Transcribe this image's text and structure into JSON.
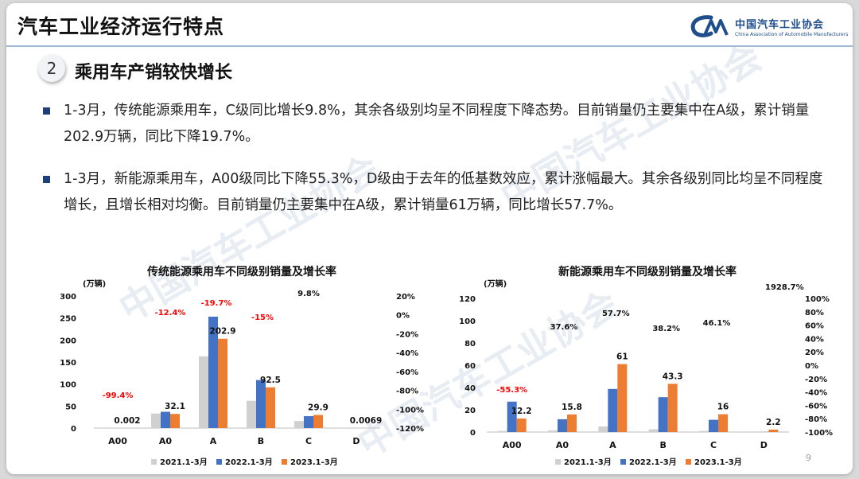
{
  "header": {
    "title": "汽车工业经济运行特点"
  },
  "logo": {
    "name_cn": "中国汽车工业协会",
    "name_en": "China Association of Automobile Manufacturers"
  },
  "watermark": "中国汽车工业协会",
  "section": {
    "number": "2",
    "title": "乘用车产销较快增长"
  },
  "bullets": [
    "1-3月，传统能源乘用车，C级同比增长9.8%，其余各级别均呈不同程度下降态势。目前销量仍主要集中在A级，累计销量202.9万辆，同比下降19.7%。",
    "1-3月，新能源乘用车，A00级同比下降55.3%，D级由于去年的低基数效应，累计涨幅最大。其余各级别同比均呈不同程度增长，且增长相对均衡。目前销量仍主要集中在A级，累计销量61万辆，同比增长57.7%。"
  ],
  "page_number": "9",
  "colors": {
    "s2021": "#d0d0d0",
    "s2022": "#4472c4",
    "s2023": "#ed7d31",
    "negative": "#ff0000",
    "bullet": "#1f3f7a"
  },
  "chart_data": [
    {
      "type": "bar",
      "title": "传统能源乘用车不同级别销量及增长率",
      "unit_label": "(万辆)",
      "categories": [
        "A00",
        "A0",
        "A",
        "B",
        "C",
        "D"
      ],
      "series": [
        {
          "name": "2021.1-3月",
          "values": [
            0.01,
            33,
            163,
            62,
            16,
            0.01
          ]
        },
        {
          "name": "2022.1-3月",
          "values": [
            0.01,
            37,
            253,
            109,
            27,
            0.01
          ]
        },
        {
          "name": "2023.1-3月",
          "values": [
            0.002,
            32.1,
            202.9,
            92.5,
            29.9,
            0.0069
          ]
        }
      ],
      "value_labels": [
        "0.002",
        "32.1",
        "202.9",
        "92.5",
        "29.9",
        "0.0069"
      ],
      "growth_labels": [
        "-99.4%",
        "-12.4%",
        "-19.7%",
        "-15%",
        "9.8%",
        ""
      ],
      "growth_values": [
        -99.4,
        -12.4,
        -19.7,
        -15,
        9.8,
        null
      ],
      "ylim": [
        0,
        300
      ],
      "yticks": [
        "300",
        "250",
        "200",
        "150",
        "100",
        "50",
        "0"
      ],
      "y2lim": [
        -120,
        20
      ],
      "y2ticks": [
        "20%",
        "0%",
        "-20%",
        "-40%",
        "-60%",
        "-80%",
        "-100%",
        "-120%"
      ],
      "legend": "bottom"
    },
    {
      "type": "bar",
      "title": "新能源乘用车不同级别销量及增长率",
      "unit_label": "(万辆)",
      "categories": [
        "A00",
        "A0",
        "A",
        "B",
        "C",
        "D"
      ],
      "series": [
        {
          "name": "2021.1-3月",
          "values": [
            1,
            1.5,
            5,
            2.5,
            1,
            0.01
          ]
        },
        {
          "name": "2022.1-3月",
          "values": [
            27.3,
            11.5,
            38.7,
            31.3,
            11,
            0.1
          ]
        },
        {
          "name": "2023.1-3月",
          "values": [
            12.2,
            15.8,
            61,
            43.3,
            16,
            2.2
          ]
        }
      ],
      "value_labels": [
        "12.2",
        "15.8",
        "61",
        "43.3",
        "16",
        "2.2"
      ],
      "growth_labels": [
        "-55.3%",
        "37.6%",
        "57.7%",
        "38.2%",
        "46.1%",
        "1928.7%"
      ],
      "growth_values": [
        -55.3,
        37.6,
        57.7,
        38.2,
        46.1,
        1928.7
      ],
      "ylim": [
        0,
        120
      ],
      "yticks": [
        "120",
        "100",
        "80",
        "60",
        "40",
        "20",
        "0"
      ],
      "y2lim": [
        -100,
        100
      ],
      "y2ticks": [
        "100%",
        "80%",
        "60%",
        "40%",
        "20%",
        "0%",
        "-20%",
        "-40%",
        "-60%",
        "-80%",
        "-100%"
      ],
      "legend": "bottom"
    }
  ]
}
